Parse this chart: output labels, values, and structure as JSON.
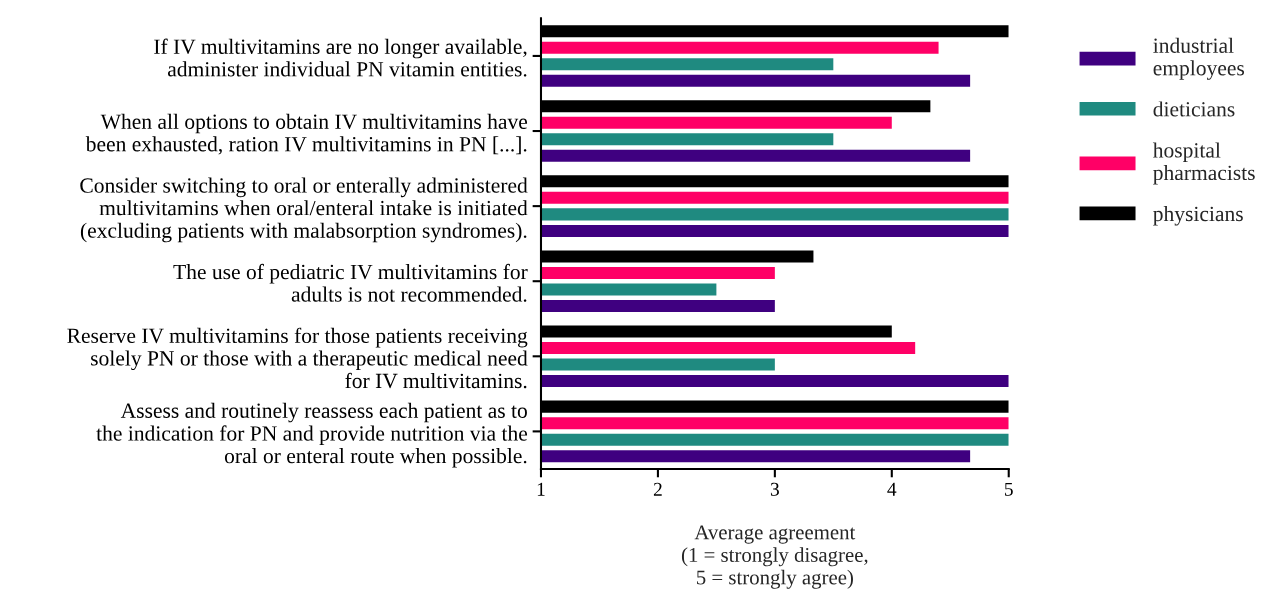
{
  "chart_data": {
    "type": "bar",
    "orientation": "horizontal",
    "xlabel": "Average agreement\n(1 = strongly disagree,\n5 = strongly agree)",
    "categories": [
      "If IV multivitamins are no longer available,\nadminister individual PN vitamin entities.",
      "When all options to obtain IV multivitamins have\nbeen exhausted, ration IV multivitamins in PN [...].",
      "Consider switching to oral or enterally administered\nmultivitamins when oral/enteral intake is initiated\n(excluding patients with malabsorption syndromes).",
      "The use of pediatric IV multivitamins for\nadults is not recommended.",
      "Reserve IV multivitamins for those patients receiving\nsolely PN or those with a therapeutic medical need\nfor IV multivitamins.",
      "Assess and routinely reassess each patient as to\nthe indication for PN and provide nutrition via the\noral or enteral route when possible."
    ],
    "series": [
      {
        "name": "industrial\nemployees",
        "color": "#3f0080",
        "values": [
          4.67,
          4.67,
          5,
          3,
          5,
          4.67
        ]
      },
      {
        "name": "dieticians",
        "color": "#1f8a80",
        "values": [
          3.5,
          3.5,
          5,
          2.5,
          3,
          5
        ]
      },
      {
        "name": "hospital\npharmacists",
        "color": "#ff0066",
        "values": [
          4.4,
          4,
          5,
          3,
          4.2,
          5
        ]
      },
      {
        "name": "physicians",
        "color": "#000000",
        "values": [
          5,
          4.33,
          5,
          3.33,
          4,
          5
        ]
      }
    ],
    "xlim": [
      1,
      5
    ],
    "xticks": [
      1,
      2,
      3,
      4,
      5
    ],
    "grid": false,
    "legend": "top right"
  }
}
